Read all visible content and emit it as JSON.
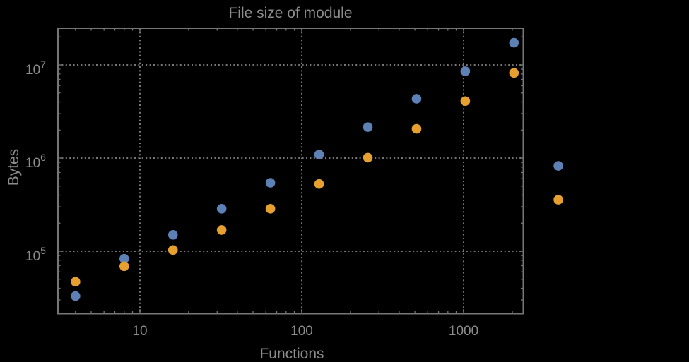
{
  "title": "File size of module",
  "x_axis_label": "Functions",
  "y_axis_label": "Bytes",
  "colors": {
    "background": "#000000",
    "frame": "#767676",
    "grid": "#878787",
    "text": "#8c8c8c",
    "series_blue": "#5e81b5",
    "series_orange": "#e6a02f"
  },
  "chart_data": {
    "type": "scatter",
    "title": "File size of module",
    "xlabel": "Functions",
    "ylabel": "Bytes",
    "x_scale": "log",
    "y_scale": "log",
    "x_range": [
      3.116,
      2338
    ],
    "y_range": [
      21360,
      24770000
    ],
    "grid": true,
    "legend": "none",
    "marker_radius_px": 6.8,
    "x_major_ticks": [
      {
        "value": 10,
        "label": "10"
      },
      {
        "value": 100,
        "label": "100"
      },
      {
        "value": 1000,
        "label": "1000"
      }
    ],
    "y_major_ticks": [
      {
        "value": 100000,
        "mantissa": "10",
        "exponent": "5"
      },
      {
        "value": 1000000,
        "mantissa": "10",
        "exponent": "6"
      },
      {
        "value": 10000000,
        "mantissa": "10",
        "exponent": "7"
      }
    ],
    "series": [
      {
        "name": "blue",
        "color": "#5e81b5",
        "points": [
          [
            4,
            33000
          ],
          [
            8,
            83000
          ],
          [
            16,
            150000
          ],
          [
            32,
            286000
          ],
          [
            64,
            543000
          ],
          [
            128,
            1090000
          ],
          [
            256,
            2150000
          ],
          [
            512,
            4330000
          ],
          [
            1024,
            8550000
          ],
          [
            2048,
            17300000
          ],
          [
            3850,
            825000
          ]
        ]
      },
      {
        "name": "orange",
        "color": "#e6a02f",
        "points": [
          [
            4,
            47000
          ],
          [
            8,
            69000
          ],
          [
            16,
            103000
          ],
          [
            32,
            169000
          ],
          [
            64,
            286000
          ],
          [
            128,
            527000
          ],
          [
            256,
            1010000
          ],
          [
            512,
            2060000
          ],
          [
            1024,
            4090000
          ],
          [
            2048,
            8210000
          ],
          [
            3850,
            357000
          ]
        ]
      }
    ]
  }
}
